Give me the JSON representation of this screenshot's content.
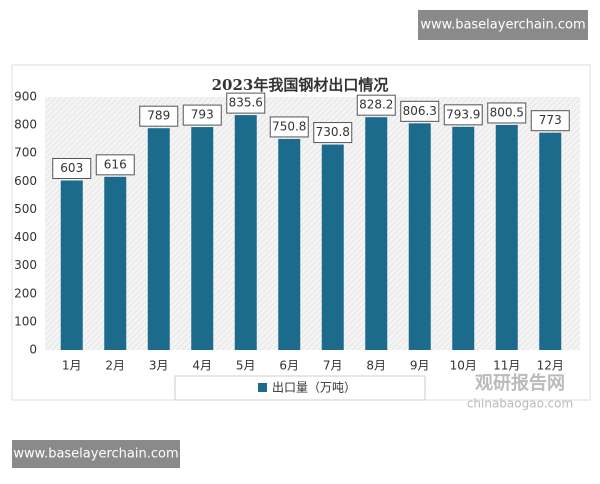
{
  "top_banner": "www.baselayerchain.com",
  "bottom_banner": "www.baselayerchain.com",
  "source_logo": "观研报告网",
  "source_url": "chinabaogao.com",
  "chart_data": {
    "type": "bar",
    "title": "2023年我国钢材出口情况",
    "categories": [
      "1月",
      "2月",
      "3月",
      "4月",
      "5月",
      "6月",
      "7月",
      "8月",
      "9月",
      "10月",
      "11月",
      "12月"
    ],
    "series": [
      {
        "name": "出口量（万吨）",
        "color": "#1c6a8c",
        "values": [
          603,
          616,
          789,
          793,
          835.6,
          750.8,
          730.8,
          828.2,
          806.3,
          793.9,
          800.5,
          773
        ]
      }
    ],
    "ylim": [
      0,
      900
    ],
    "yticks": [
      0,
      100,
      200,
      300,
      400,
      500,
      600,
      700,
      800,
      900
    ],
    "grid": false,
    "data_labels": true,
    "legend": "bottom"
  }
}
